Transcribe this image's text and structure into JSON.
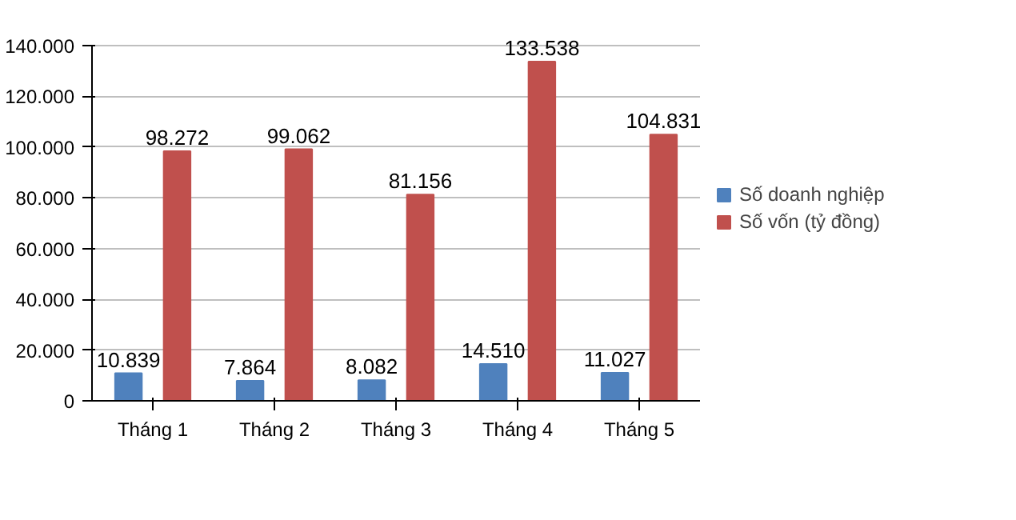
{
  "chart_data": {
    "type": "bar",
    "categories": [
      "Tháng 1",
      "Tháng 2",
      "Tháng 3",
      "Tháng 4",
      "Tháng 5"
    ],
    "series": [
      {
        "name": "Số doanh nghiệp",
        "color": "#4f81bd",
        "values": [
          10839,
          7864,
          8082,
          14510,
          11027
        ],
        "value_labels": [
          "10.839",
          "7.864",
          "8.082",
          "14.510",
          "11.027"
        ]
      },
      {
        "name": "Số vốn (tỷ đồng)",
        "color": "#c0504d",
        "values": [
          98272,
          99062,
          81156,
          133538,
          104831
        ],
        "value_labels": [
          "98.272",
          "99.062",
          "81.156",
          "133.538",
          "104.831"
        ]
      }
    ],
    "ylim": [
      0,
      140000
    ],
    "yticks": [
      0,
      {
        "value": 20000,
        "label": "20.000"
      },
      {
        "value": 40000,
        "label": "40.000"
      },
      {
        "value": 60000,
        "label": "60.000"
      },
      {
        "value": 80000,
        "label": "80.000"
      },
      {
        "value": 100000,
        "label": "100.000"
      },
      {
        "value": 120000,
        "label": "120.000"
      },
      {
        "value": 140000,
        "label": "140.000"
      }
    ],
    "grid": "y",
    "legend": "right"
  }
}
